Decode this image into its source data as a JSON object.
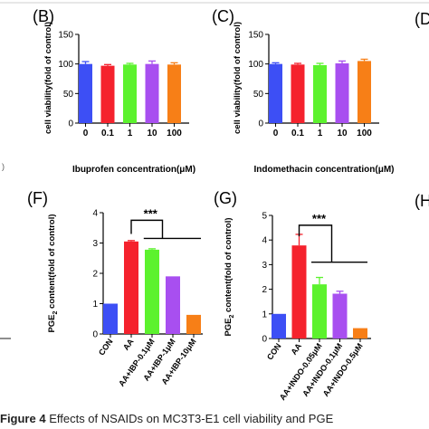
{
  "chart_data": [
    {
      "type": "bar",
      "panel_label": "(B)",
      "categories": [
        "0",
        "0.1",
        "1",
        "10",
        "100"
      ],
      "values": [
        100,
        97,
        99,
        100,
        99
      ],
      "errors": [
        4,
        2,
        2,
        5,
        3
      ],
      "xlabel": "Ibuprofen concentration(μM)",
      "ylabel": "cell viability(fold of control)",
      "ylim": [
        0,
        150
      ],
      "yticks": [
        0,
        50,
        100,
        150
      ],
      "grid": false
    },
    {
      "type": "bar",
      "panel_label": "(C)",
      "categories": [
        "0",
        "0.1",
        "1",
        "10",
        "100"
      ],
      "values": [
        100,
        99,
        98,
        101,
        105
      ],
      "errors": [
        2,
        2,
        3,
        4,
        3
      ],
      "xlabel": "Indomethacin concentration(μM)",
      "ylabel": "cell viability(fold of control)",
      "ylim": [
        0,
        150
      ],
      "yticks": [
        0,
        50,
        100,
        150
      ],
      "grid": false
    },
    {
      "type": "bar",
      "panel_label": "(F)",
      "categories": [
        "CON",
        "AA",
        "AA+IBP-0.1μM",
        "AA+IBP-1μM",
        "AA+IBP-10μM"
      ],
      "values": [
        1.0,
        3.05,
        2.78,
        1.9,
        0.63
      ],
      "errors": [
        0,
        0.03,
        0.03,
        0,
        0
      ],
      "ylabel_main": "PGE",
      "ylabel_sub": "2",
      "ylabel_rest": " content(fold of control)",
      "ylim": [
        0,
        4
      ],
      "yticks": [
        0,
        1,
        2,
        3,
        4
      ],
      "significance": "***",
      "grid": false
    },
    {
      "type": "bar",
      "panel_label": "(G)",
      "categories": [
        "CON",
        "AA",
        "AA+INDO-0.05μM",
        "AA+INDO-0.1μM",
        "AA+INDO-0.5μM"
      ],
      "values": [
        1.0,
        3.78,
        2.2,
        1.82,
        0.42
      ],
      "errors": [
        0,
        0.45,
        0.28,
        0.1,
        0
      ],
      "ylabel_main": "PGE",
      "ylabel_sub": "2",
      "ylabel_rest": " content(fold of control)",
      "ylim": [
        0,
        5
      ],
      "yticks": [
        0,
        1,
        2,
        3,
        4,
        5
      ],
      "significance": "***",
      "grid": false
    }
  ],
  "edge_labels": {
    "top_right": "(D",
    "mid_right": "(H"
  },
  "caption": {
    "bold": "Figure 4",
    "text": " Effects of NSAIDs on MC3T3-E1 cell viability and PGE"
  },
  "colors": {
    "bars": [
      "#3d4ff5",
      "#f5222d",
      "#5cf22e",
      "#a84ff0",
      "#f77f17"
    ],
    "axis": "#000000",
    "text": "#000000"
  }
}
